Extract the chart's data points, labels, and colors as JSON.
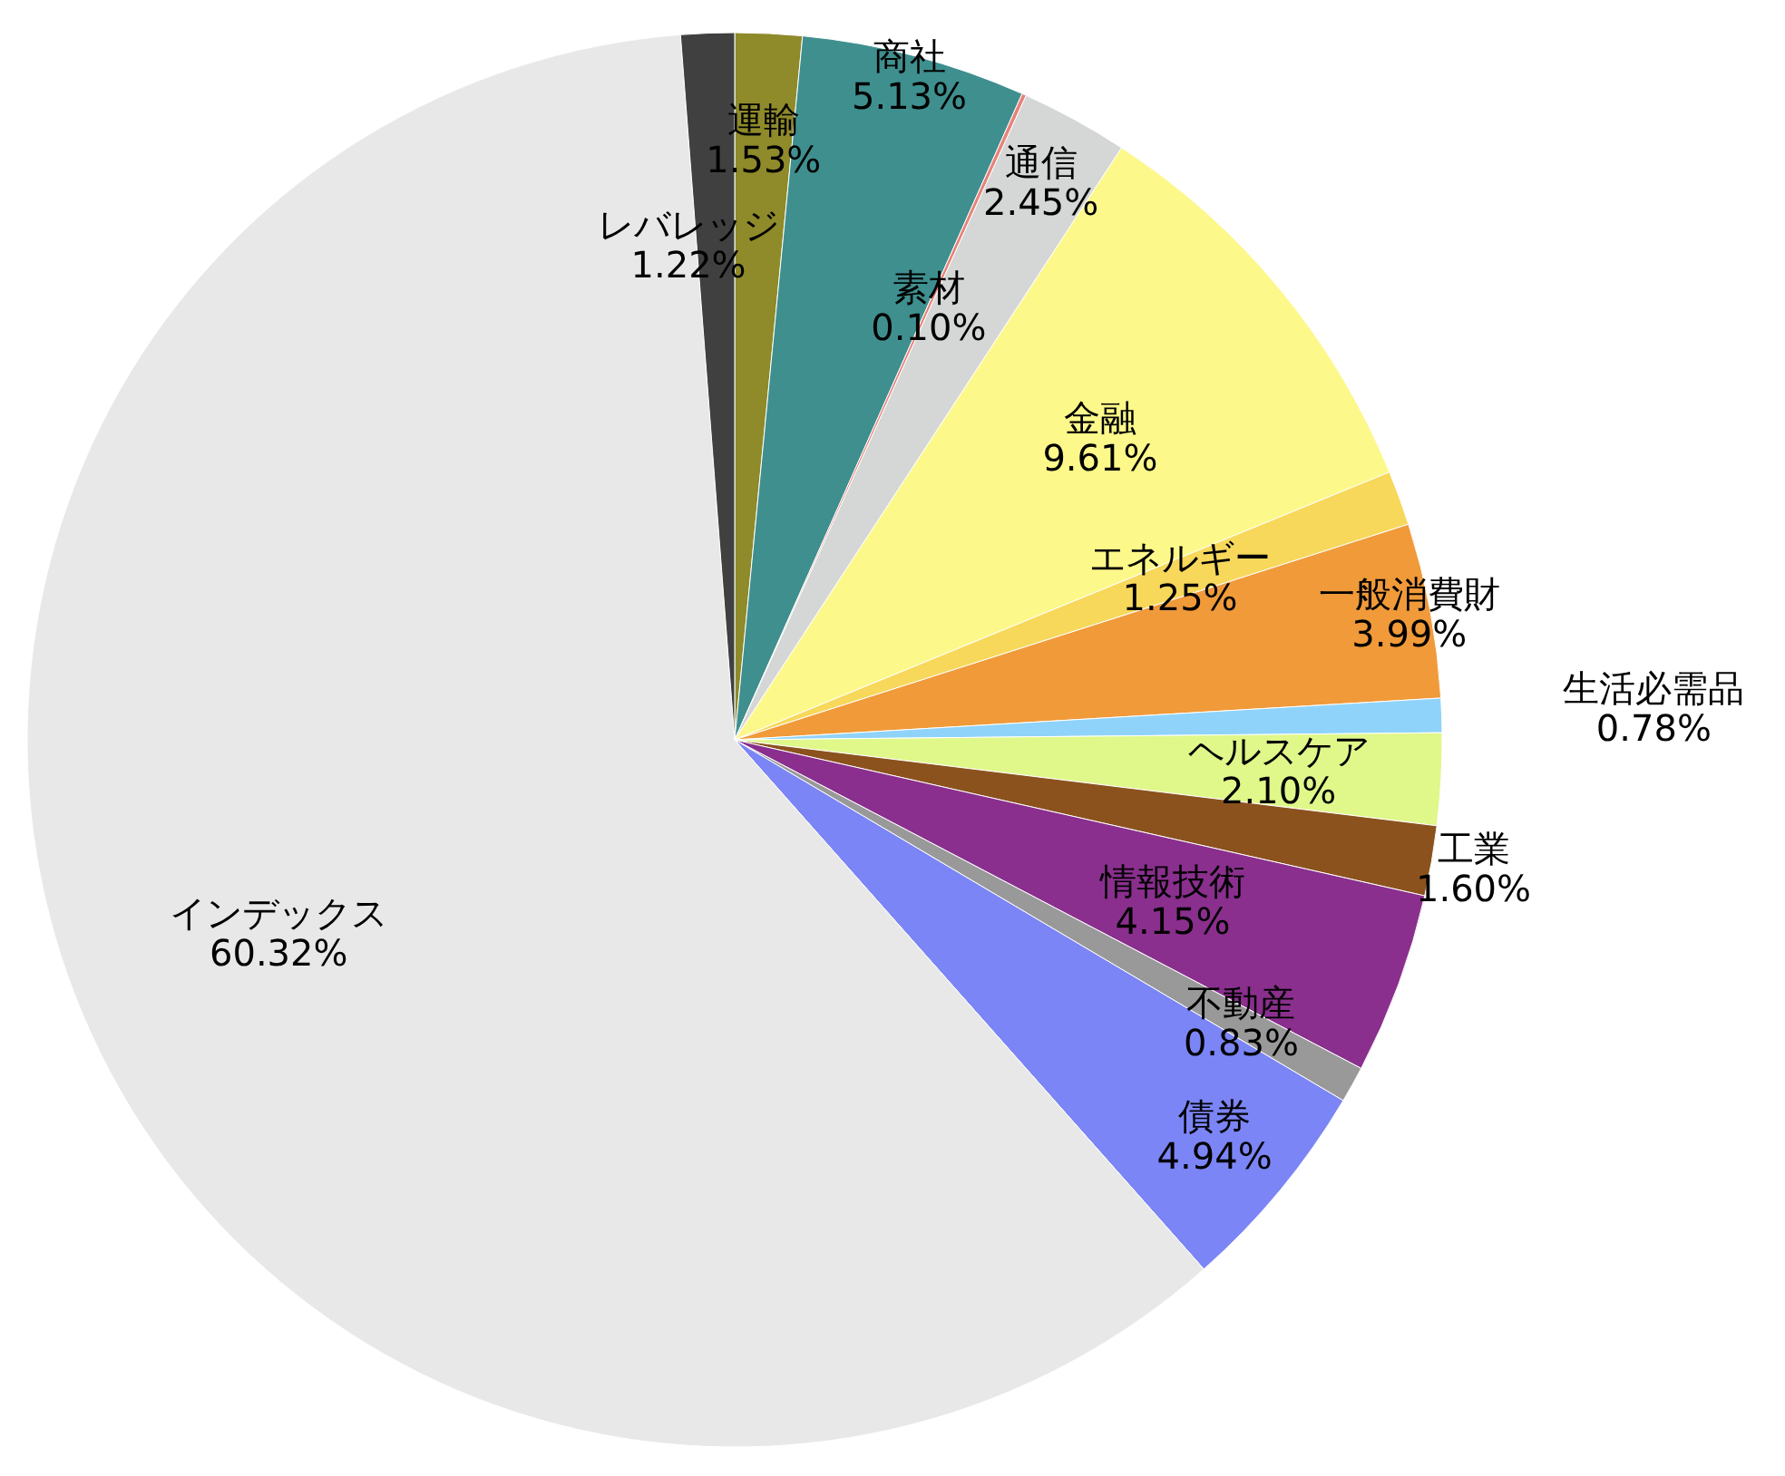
{
  "chart_data": {
    "type": "pie",
    "categories": [
      "運輸",
      "商社",
      "素材",
      "通信",
      "金融",
      "エネルギー",
      "一般消費財",
      "生活必需品",
      "ヘルスケア",
      "工業",
      "情報技術",
      "不動産",
      "債券",
      "インデックス",
      "レバレッジ"
    ],
    "values": [
      1.53,
      5.13,
      0.1,
      2.45,
      9.61,
      1.25,
      3.99,
      0.78,
      2.1,
      1.6,
      4.15,
      0.83,
      4.94,
      60.32,
      1.22
    ],
    "value_labels": [
      "1.53%",
      "5.13%",
      "0.10%",
      "2.45%",
      "9.61%",
      "1.25%",
      "3.99%",
      "0.78%",
      "2.10%",
      "1.60%",
      "4.15%",
      "0.83%",
      "4.94%",
      "60.32%",
      "1.22%"
    ],
    "colors": [
      "#8f8a2a",
      "#3f8f8f",
      "#e8837a",
      "#d5d6d6",
      "#fdf88a",
      "#f7d85a",
      "#f09a3a",
      "#8fd3fa",
      "#e0f78a",
      "#8b521d",
      "#8a2f8e",
      "#999999",
      "#7b85f5",
      "#e8e8e8",
      "#404040"
    ]
  }
}
